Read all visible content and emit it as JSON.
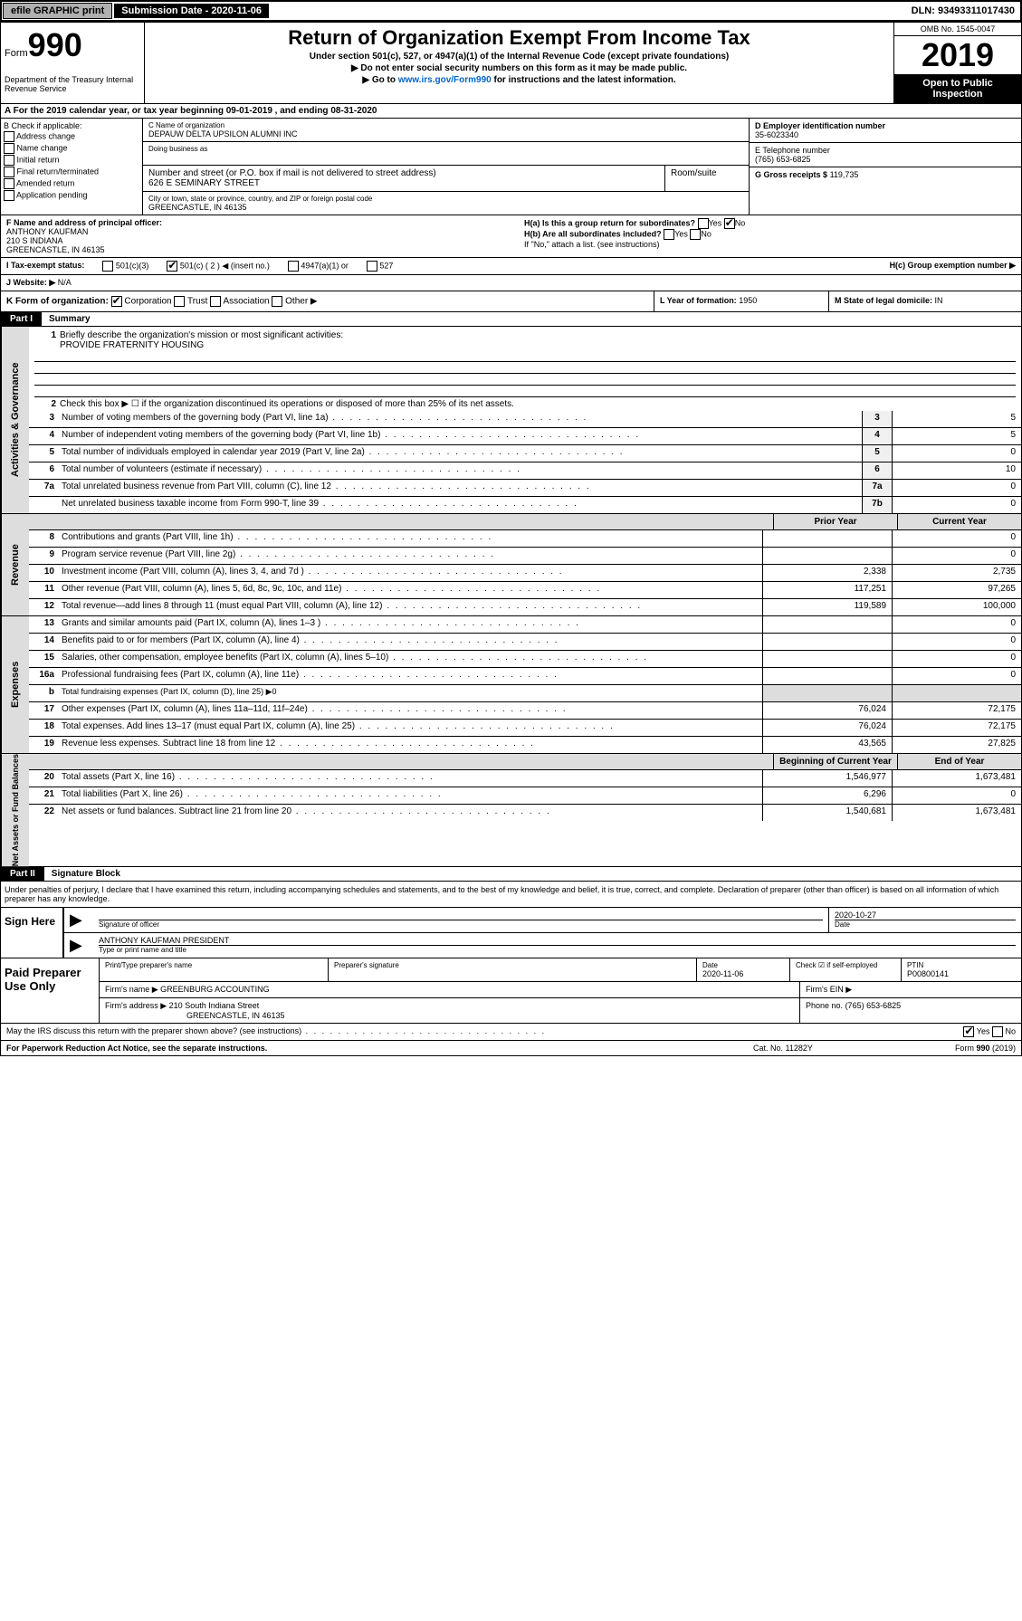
{
  "topbar": {
    "efile": "efile GRAPHIC print",
    "submission_label": "Submission Date - 2020-11-06",
    "dln": "DLN: 93493311017430"
  },
  "header": {
    "form_prefix": "Form",
    "form_number": "990",
    "dept": "Department of the Treasury\nInternal Revenue Service",
    "title": "Return of Organization Exempt From Income Tax",
    "subtitle1": "Under section 501(c), 527, or 4947(a)(1) of the Internal Revenue Code (except private foundations)",
    "subtitle2": "▶ Do not enter social security numbers on this form as it may be made public.",
    "subtitle3_pre": "▶ Go to ",
    "subtitle3_link": "www.irs.gov/Form990",
    "subtitle3_post": " for instructions and the latest information.",
    "omb": "OMB No. 1545-0047",
    "year": "2019",
    "open": "Open to Public Inspection"
  },
  "period": "A For the 2019 calendar year, or tax year beginning 09-01-2019    , and ending 08-31-2020",
  "box_b": {
    "label": "B Check if applicable:",
    "items": [
      "Address change",
      "Name change",
      "Initial return",
      "Final return/terminated",
      "Amended return",
      "Application pending"
    ]
  },
  "box_c": {
    "name_label": "C Name of organization",
    "name": "DEPAUW DELTA UPSILON ALUMNI INC",
    "dba_label": "Doing business as",
    "addr_label": "Number and street (or P.O. box if mail is not delivered to street address)",
    "room_label": "Room/suite",
    "addr": "626 E SEMINARY STREET",
    "city_label": "City or town, state or province, country, and ZIP or foreign postal code",
    "city": "GREENCASTLE, IN  46135"
  },
  "box_d": {
    "label": "D Employer identification number",
    "value": "35-6023340"
  },
  "box_e": {
    "label": "E Telephone number",
    "value": "(765) 653-6825"
  },
  "box_g": {
    "label": "G Gross receipts $",
    "value": "119,735"
  },
  "box_f": {
    "label": "F  Name and address of principal officer:",
    "name": "ANTHONY KAUFMAN",
    "addr1": "210 S INDIANA",
    "addr2": "GREENCASTLE, IN  46135"
  },
  "box_h": {
    "ha": "H(a)  Is this a group return for subordinates?",
    "hb": "H(b)  Are all subordinates included?",
    "hb_note": "If \"No,\" attach a list. (see instructions)",
    "hc": "H(c)  Group exemption number ▶",
    "yes": "Yes",
    "no": "No"
  },
  "box_i": {
    "label": "I  Tax-exempt status:",
    "opts": [
      "501(c)(3)",
      "501(c) ( 2 ) ◀ (insert no.)",
      "4947(a)(1) or",
      "527"
    ]
  },
  "box_j": {
    "label": "J  Website: ▶",
    "value": "N/A"
  },
  "box_k": {
    "label": "K Form of organization:",
    "opts": [
      "Corporation",
      "Trust",
      "Association",
      "Other ▶"
    ]
  },
  "box_l": {
    "label": "L Year of formation:",
    "value": "1950"
  },
  "box_m": {
    "label": "M State of legal domicile:",
    "value": "IN"
  },
  "part1": {
    "num": "Part I",
    "title": "Summary"
  },
  "summary": {
    "l1_label": "Briefly describe the organization's mission or most significant activities:",
    "l1_text": "PROVIDE FRATERNITY HOUSING",
    "l2": "Check this box ▶ ☐  if the organization discontinued its operations or disposed of more than 25% of its net assets.",
    "lines": [
      {
        "n": "3",
        "t": "Number of voting members of the governing body (Part VI, line 1a)",
        "box": "3",
        "v": "5"
      },
      {
        "n": "4",
        "t": "Number of independent voting members of the governing body (Part VI, line 1b)",
        "box": "4",
        "v": "5"
      },
      {
        "n": "5",
        "t": "Total number of individuals employed in calendar year 2019 (Part V, line 2a)",
        "box": "5",
        "v": "0"
      },
      {
        "n": "6",
        "t": "Total number of volunteers (estimate if necessary)",
        "box": "6",
        "v": "10"
      },
      {
        "n": "7a",
        "t": "Total unrelated business revenue from Part VIII, column (C), line 12",
        "box": "7a",
        "v": "0"
      },
      {
        "n": "",
        "t": "Net unrelated business taxable income from Form 990-T, line 39",
        "box": "7b",
        "v": "0"
      }
    ],
    "col_prior": "Prior Year",
    "col_current": "Current Year",
    "revenue": [
      {
        "n": "8",
        "t": "Contributions and grants (Part VIII, line 1h)",
        "p": "",
        "c": "0"
      },
      {
        "n": "9",
        "t": "Program service revenue (Part VIII, line 2g)",
        "p": "",
        "c": "0"
      },
      {
        "n": "10",
        "t": "Investment income (Part VIII, column (A), lines 3, 4, and 7d )",
        "p": "2,338",
        "c": "2,735"
      },
      {
        "n": "11",
        "t": "Other revenue (Part VIII, column (A), lines 5, 6d, 8c, 9c, 10c, and 11e)",
        "p": "117,251",
        "c": "97,265"
      },
      {
        "n": "12",
        "t": "Total revenue—add lines 8 through 11 (must equal Part VIII, column (A), line 12)",
        "p": "119,589",
        "c": "100,000"
      }
    ],
    "expenses": [
      {
        "n": "13",
        "t": "Grants and similar amounts paid (Part IX, column (A), lines 1–3 )",
        "p": "",
        "c": "0"
      },
      {
        "n": "14",
        "t": "Benefits paid to or for members (Part IX, column (A), line 4)",
        "p": "",
        "c": "0"
      },
      {
        "n": "15",
        "t": "Salaries, other compensation, employee benefits (Part IX, column (A), lines 5–10)",
        "p": "",
        "c": "0"
      },
      {
        "n": "16a",
        "t": "Professional fundraising fees (Part IX, column (A), line 11e)",
        "p": "",
        "c": "0"
      },
      {
        "n": "b",
        "t": "Total fundraising expenses (Part IX, column (D), line 25) ▶0",
        "p": null,
        "c": null
      },
      {
        "n": "17",
        "t": "Other expenses (Part IX, column (A), lines 11a–11d, 11f–24e)",
        "p": "76,024",
        "c": "72,175"
      },
      {
        "n": "18",
        "t": "Total expenses. Add lines 13–17 (must equal Part IX, column (A), line 25)",
        "p": "76,024",
        "c": "72,175"
      },
      {
        "n": "19",
        "t": "Revenue less expenses. Subtract line 18 from line 12",
        "p": "43,565",
        "c": "27,825"
      }
    ],
    "col_begin": "Beginning of Current Year",
    "col_end": "End of Year",
    "netassets": [
      {
        "n": "20",
        "t": "Total assets (Part X, line 16)",
        "p": "1,546,977",
        "c": "1,673,481"
      },
      {
        "n": "21",
        "t": "Total liabilities (Part X, line 26)",
        "p": "6,296",
        "c": "0"
      },
      {
        "n": "22",
        "t": "Net assets or fund balances. Subtract line 21 from line 20",
        "p": "1,540,681",
        "c": "1,673,481"
      }
    ]
  },
  "sidebars": {
    "gov": "Activities & Governance",
    "rev": "Revenue",
    "exp": "Expenses",
    "net": "Net Assets or Fund Balances"
  },
  "part2": {
    "num": "Part II",
    "title": "Signature Block"
  },
  "perjury": "Under penalties of perjury, I declare that I have examined this return, including accompanying schedules and statements, and to the best of my knowledge and belief, it is true, correct, and complete. Declaration of preparer (other than officer) is based on all information of which preparer has any knowledge.",
  "sign": {
    "here": "Sign Here",
    "sig_label": "Signature of officer",
    "date": "2020-10-27",
    "date_label": "Date",
    "name": "ANTHONY KAUFMAN  PRESIDENT",
    "name_label": "Type or print name and title"
  },
  "prep": {
    "label": "Paid Preparer Use Only",
    "h1": "Print/Type preparer's name",
    "h2": "Preparer's signature",
    "h3": "Date",
    "h3v": "2020-11-06",
    "h4": "Check ☑ if self-employed",
    "h5": "PTIN",
    "h5v": "P00800141",
    "firm_label": "Firm's name    ▶",
    "firm": "GREENBURG ACCOUNTING",
    "ein_label": "Firm's EIN ▶",
    "addr_label": "Firm's address ▶",
    "addr": "210 South Indiana Street",
    "addr2": "GREENCASTLE, IN  46135",
    "phone_label": "Phone no.",
    "phone": "(765) 653-6825"
  },
  "discuss": "May the IRS discuss this return with the preparer shown above? (see instructions)",
  "footer": {
    "pra": "For Paperwork Reduction Act Notice, see the separate instructions.",
    "cat": "Cat. No. 11282Y",
    "form": "Form 990 (2019)"
  }
}
